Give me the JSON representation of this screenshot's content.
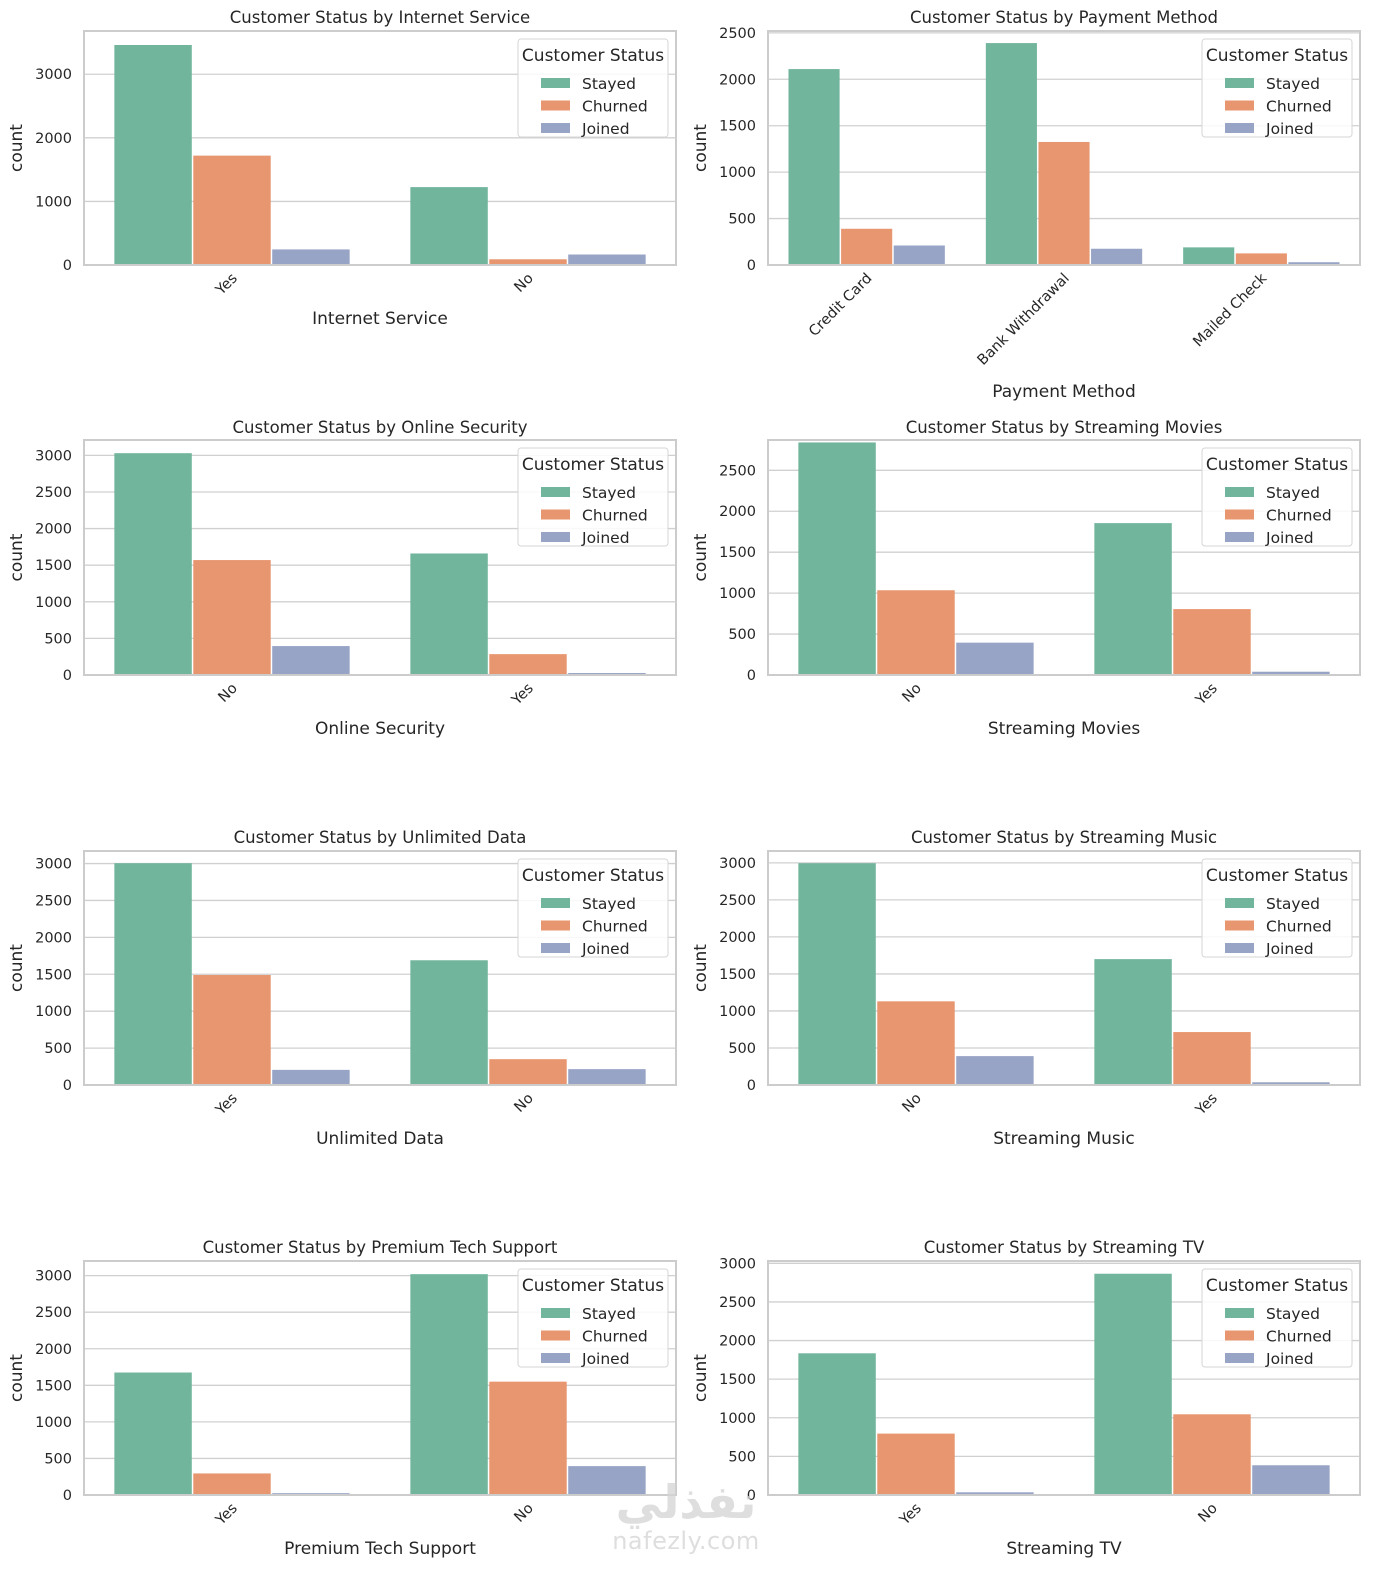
{
  "figure": {
    "legend_title": "Customer Status",
    "series_names": [
      "Stayed",
      "Churned",
      "Joined"
    ],
    "series_colors": [
      "#72b59d",
      "#e8966f",
      "#97a4c6"
    ],
    "watermark": {
      "arabic": "نفذلي",
      "latin": "nafezly.com"
    }
  },
  "chart_data": [
    {
      "type": "bar",
      "title": "Customer Status by Internet Service",
      "xlabel": "Internet Service",
      "ylabel": "count",
      "categories": [
        "Yes",
        "No"
      ],
      "series": [
        {
          "name": "Stayed",
          "values": [
            3460,
            1225
          ]
        },
        {
          "name": "Churned",
          "values": [
            1720,
            90
          ]
        },
        {
          "name": "Joined",
          "values": [
            245,
            165
          ]
        }
      ],
      "yticks": [
        0,
        1000,
        2000,
        3000
      ],
      "ylim": [
        0,
        3680
      ],
      "grid": true,
      "legend": "top-right",
      "xtick_rotation": 45
    },
    {
      "type": "bar",
      "title": "Customer Status by Payment Method",
      "xlabel": "Payment Method",
      "ylabel": "count",
      "categories": [
        "Credit Card",
        "Bank Withdrawal",
        "Mailed Check"
      ],
      "series": [
        {
          "name": "Stayed",
          "values": [
            2110,
            2390,
            190
          ]
        },
        {
          "name": "Churned",
          "values": [
            390,
            1325,
            125
          ]
        },
        {
          "name": "Joined",
          "values": [
            210,
            175,
            30
          ]
        }
      ],
      "yticks": [
        0,
        500,
        1000,
        1500,
        2000,
        2500
      ],
      "ylim": [
        0,
        2520
      ],
      "grid": true,
      "legend": "top-right",
      "xtick_rotation": 45
    },
    {
      "type": "bar",
      "title": "Customer Status by Online Security",
      "xlabel": "Online Security",
      "ylabel": "count",
      "categories": [
        "No",
        "Yes"
      ],
      "series": [
        {
          "name": "Stayed",
          "values": [
            3030,
            1660
          ]
        },
        {
          "name": "Churned",
          "values": [
            1570,
            285
          ]
        },
        {
          "name": "Joined",
          "values": [
            395,
            27
          ]
        }
      ],
      "yticks": [
        0,
        500,
        1000,
        1500,
        2000,
        2500,
        3000
      ],
      "ylim": [
        0,
        3210
      ],
      "grid": true,
      "legend": "top-right",
      "xtick_rotation": 45
    },
    {
      "type": "bar",
      "title": "Customer Status by Streaming Movies",
      "xlabel": "Streaming Movies",
      "ylabel": "count",
      "categories": [
        "No",
        "Yes"
      ],
      "series": [
        {
          "name": "Stayed",
          "values": [
            2840,
            1855
          ]
        },
        {
          "name": "Churned",
          "values": [
            1035,
            805
          ]
        },
        {
          "name": "Joined",
          "values": [
            395,
            40
          ]
        }
      ],
      "yticks": [
        0,
        500,
        1000,
        1500,
        2000,
        2500
      ],
      "ylim": [
        0,
        2870
      ],
      "grid": true,
      "legend": "top-right",
      "xtick_rotation": 45
    },
    {
      "type": "bar",
      "title": "Customer Status by Unlimited Data",
      "xlabel": "Unlimited Data",
      "ylabel": "count",
      "categories": [
        "Yes",
        "No"
      ],
      "series": [
        {
          "name": "Stayed",
          "values": [
            3005,
            1690
          ]
        },
        {
          "name": "Churned",
          "values": [
            1490,
            350
          ]
        },
        {
          "name": "Joined",
          "values": [
            205,
            215
          ]
        }
      ],
      "yticks": [
        0,
        500,
        1000,
        1500,
        2000,
        2500,
        3000
      ],
      "ylim": [
        0,
        3170
      ],
      "grid": true,
      "legend": "top-right",
      "xtick_rotation": 45
    },
    {
      "type": "bar",
      "title": "Customer Status by Streaming Music",
      "xlabel": "Streaming Music",
      "ylabel": "count",
      "categories": [
        "No",
        "Yes"
      ],
      "series": [
        {
          "name": "Stayed",
          "values": [
            2995,
            1700
          ]
        },
        {
          "name": "Churned",
          "values": [
            1130,
            715
          ]
        },
        {
          "name": "Joined",
          "values": [
            390,
            37
          ]
        }
      ],
      "yticks": [
        0,
        500,
        1000,
        1500,
        2000,
        2500,
        3000
      ],
      "ylim": [
        0,
        3160
      ],
      "grid": true,
      "legend": "top-right",
      "xtick_rotation": 45
    },
    {
      "type": "bar",
      "title": "Customer Status by Premium Tech Support",
      "xlabel": "Premium Tech Support",
      "ylabel": "count",
      "categories": [
        "Yes",
        "No"
      ],
      "series": [
        {
          "name": "Stayed",
          "values": [
            1675,
            3020
          ]
        },
        {
          "name": "Churned",
          "values": [
            295,
            1550
          ]
        },
        {
          "name": "Joined",
          "values": [
            25,
            395
          ]
        }
      ],
      "yticks": [
        0,
        500,
        1000,
        1500,
        2000,
        2500,
        3000
      ],
      "ylim": [
        0,
        3200
      ],
      "grid": true,
      "legend": "top-right",
      "xtick_rotation": 45
    },
    {
      "type": "bar",
      "title": "Customer Status by Streaming TV",
      "xlabel": "Streaming TV",
      "ylabel": "count",
      "categories": [
        "Yes",
        "No"
      ],
      "series": [
        {
          "name": "Stayed",
          "values": [
            1835,
            2865
          ]
        },
        {
          "name": "Churned",
          "values": [
            795,
            1045
          ]
        },
        {
          "name": "Joined",
          "values": [
            35,
            385
          ]
        }
      ],
      "yticks": [
        0,
        500,
        1000,
        1500,
        2000,
        2500,
        3000
      ],
      "ylim": [
        0,
        3030
      ],
      "grid": true,
      "legend": "top-right",
      "xtick_rotation": 45
    }
  ]
}
